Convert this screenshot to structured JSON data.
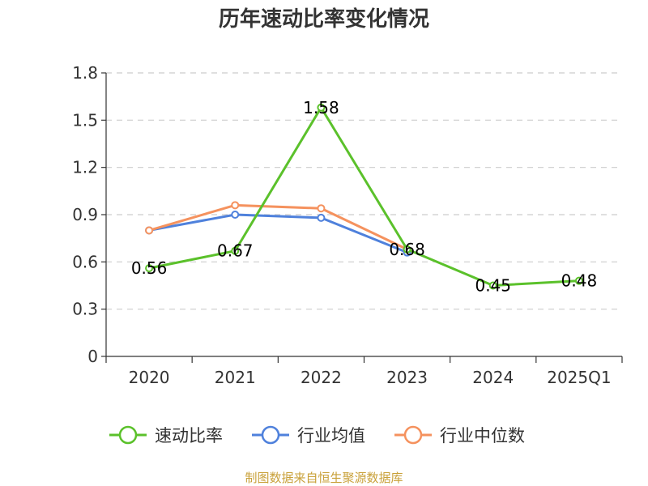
{
  "chart_data": {
    "type": "line",
    "title": "历年速动比率变化情况",
    "categories": [
      "2020",
      "2021",
      "2022",
      "2023",
      "2024",
      "2025Q1"
    ],
    "ylim": [
      0,
      1.8
    ],
    "yticks": [
      "0",
      "0.3",
      "0.6",
      "0.9",
      "1.2",
      "1.5",
      "1.8"
    ],
    "grid": true,
    "legend_position": "bottom",
    "series": [
      {
        "name": "速动比率",
        "color": "#5bc12b",
        "values": [
          0.56,
          0.67,
          1.58,
          0.68,
          0.45,
          0.48
        ],
        "labels": [
          "0.56",
          "0.67",
          "1.58",
          "0.68",
          "0.45",
          "0.48"
        ]
      },
      {
        "name": "行业均值",
        "color": "#4f81dc",
        "values": [
          0.8,
          0.9,
          0.88,
          0.66,
          null,
          null
        ]
      },
      {
        "name": "行业中位数",
        "color": "#f5925e",
        "values": [
          0.8,
          0.96,
          0.94,
          0.68,
          null,
          null
        ]
      }
    ]
  },
  "footer": {
    "source": "制图数据来自恒生聚源数据库"
  }
}
